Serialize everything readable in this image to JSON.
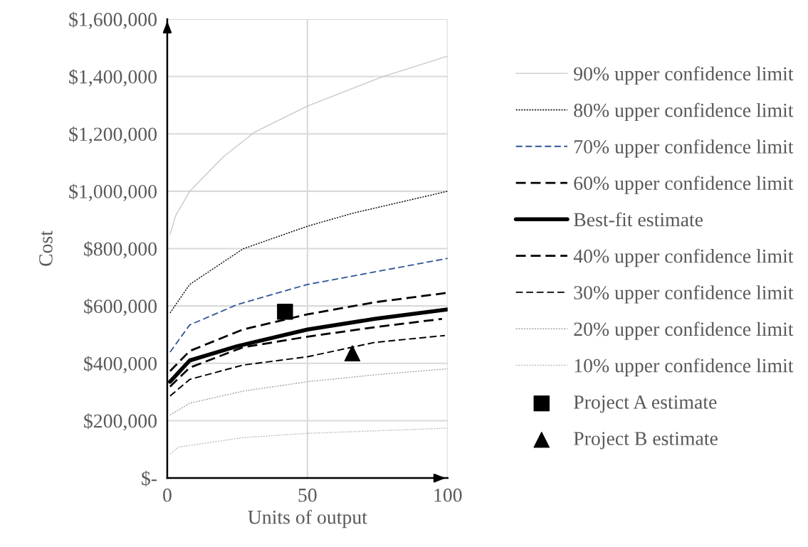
{
  "chart_data": {
    "type": "line",
    "xlabel": "Units of output",
    "ylabel": "Cost",
    "xlim": [
      0,
      100
    ],
    "xticks": [
      0,
      50,
      100
    ],
    "ylim": [
      0,
      1600000
    ],
    "yticks": [
      {
        "value": 0,
        "label": "$-"
      },
      {
        "value": 200000,
        "label": "$200,000"
      },
      {
        "value": 400000,
        "label": "$400,000"
      },
      {
        "value": 600000,
        "label": "$600,000"
      },
      {
        "value": 800000,
        "label": "$800,000"
      },
      {
        "value": 1000000,
        "label": "$1,000,000"
      },
      {
        "value": 1200000,
        "label": "$1,200,000"
      },
      {
        "value": 1400000,
        "label": "$1,400,000"
      },
      {
        "value": 1600000,
        "label": "$1,600,000"
      }
    ],
    "grid": true,
    "legend": "right",
    "marker": "none",
    "series": [
      {
        "name": "90% upper confidence limit",
        "color": "#c8c8c8",
        "line_style": "solid",
        "x": [
          1,
          3,
          8,
          20,
          31,
          50,
          77,
          100
        ],
        "values": [
          850000,
          915000,
          1000000,
          1120000,
          1205000,
          1297000,
          1400000,
          1471000
        ]
      },
      {
        "name": "80% upper confidence limit",
        "color": "#000000",
        "line_style": "dotted",
        "x": [
          1,
          8,
          27,
          50,
          66,
          100
        ],
        "values": [
          576000,
          675000,
          799000,
          878000,
          923000,
          1000000
        ]
      },
      {
        "name": "70% upper confidence limit",
        "color": "#2f5597",
        "line_style": "dashed",
        "x": [
          1,
          8,
          25,
          50,
          100
        ],
        "values": [
          439000,
          534000,
          605000,
          675000,
          766000
        ]
      },
      {
        "name": "60% upper confidence limit",
        "color": "#000000",
        "line_style": "dashed",
        "x": [
          1,
          8,
          27,
          50,
          74,
          100
        ],
        "values": [
          373000,
          443000,
          518000,
          571000,
          613000,
          646000
        ]
      },
      {
        "name": "Best-fit estimate",
        "color": "#000000",
        "line_style": "solid",
        "x": [
          1,
          8,
          25,
          50,
          74,
          100
        ],
        "values": [
          336000,
          410000,
          460000,
          518000,
          555000,
          588000
        ]
      },
      {
        "name": "40% upper confidence limit",
        "color": "#000000",
        "line_style": "dashed",
        "x": [
          1,
          8,
          27,
          50,
          74,
          98
        ],
        "values": [
          319000,
          385000,
          456000,
          493000,
          526000,
          555000
        ]
      },
      {
        "name": "30% upper confidence limit",
        "color": "#000000",
        "line_style": "dashed",
        "x": [
          1,
          8,
          27,
          50,
          74,
          99
        ],
        "values": [
          286000,
          344000,
          394000,
          423000,
          473000,
          497000
        ]
      },
      {
        "name": "20% upper confidence limit",
        "color": "#a6a6a6",
        "line_style": "dotted",
        "x": [
          1,
          8,
          27,
          50,
          74,
          100
        ],
        "values": [
          220000,
          261000,
          303000,
          336000,
          360000,
          381000
        ]
      },
      {
        "name": "10% upper confidence limit",
        "color": "#c0c0c0",
        "line_style": "dotted",
        "x": [
          1,
          4,
          27,
          50,
          100
        ],
        "values": [
          84000,
          108000,
          141000,
          156000,
          174000
        ]
      },
      {
        "name": "Project A estimate",
        "type": "scatter",
        "marker": "square",
        "color": "#000000",
        "x": [
          42
        ],
        "values": [
          580000
        ]
      },
      {
        "name": "Project B estimate",
        "type": "scatter",
        "marker": "triangle",
        "color": "#000000",
        "x": [
          66
        ],
        "values": [
          435000
        ]
      }
    ]
  }
}
